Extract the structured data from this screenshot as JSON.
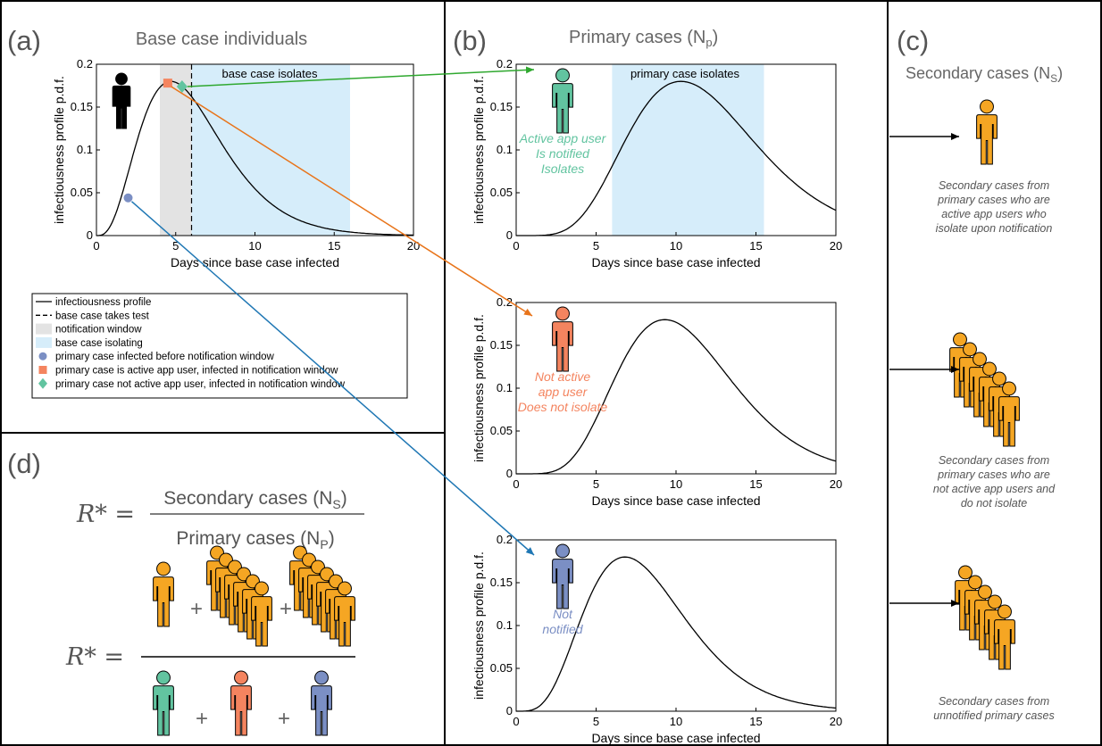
{
  "panels": {
    "a": {
      "label": "(a)",
      "title": "Base case individuals",
      "plot": {
        "ylabel": "infectiousness profile p.d.f.",
        "xlabel": "Days since base case infected",
        "xlim": [
          0,
          20
        ],
        "ylim": [
          0,
          0.2
        ],
        "xticks": [
          "0",
          "5",
          "10",
          "15",
          "20"
        ],
        "yticks": [
          "0",
          "0.05",
          "0.1",
          "0.15",
          "0.2"
        ],
        "notification_window": [
          4,
          6
        ],
        "test_day": 6,
        "isolation_window": [
          6,
          16
        ],
        "isolation_label": "base case isolates",
        "peak_day": 4.7,
        "markers": [
          {
            "kind": "circle",
            "day": 2,
            "value": 0.044,
            "color": "#7b8fc4"
          },
          {
            "kind": "square",
            "day": 4.5,
            "value": 0.178,
            "color": "#f4845f"
          },
          {
            "kind": "diamond",
            "day": 5.4,
            "value": 0.174,
            "color": "#62c4a0"
          }
        ]
      },
      "legend": [
        {
          "kind": "line",
          "label": "infectiousness profile"
        },
        {
          "kind": "dashed",
          "label": "base case takes test"
        },
        {
          "kind": "patch",
          "color": "#e3e3e3",
          "label": "notification window"
        },
        {
          "kind": "patch",
          "color": "#d6edfa",
          "label": "base case isolating"
        },
        {
          "kind": "circle",
          "color": "#7b8fc4",
          "label": "primary case infected before notification window"
        },
        {
          "kind": "square",
          "color": "#f4845f",
          "label": "primary case is active app user, infected in notification window"
        },
        {
          "kind": "diamond",
          "color": "#62c4a0",
          "label": "primary case not active app user, infected in notification window"
        }
      ]
    },
    "b": {
      "label": "(b)",
      "title": "Primary cases (N",
      "title_sub": "p",
      "title_end": ")",
      "plots": [
        {
          "ylabel": "infectiousness profile p.d.f.",
          "xlabel": "Days since base case infected",
          "xticks": [
            "0",
            "5",
            "10",
            "15",
            "20"
          ],
          "yticks": [
            "0",
            "0.05",
            "0.1",
            "0.15",
            "0.2"
          ],
          "xlim": [
            0,
            20
          ],
          "ylim": [
            0,
            0.2
          ],
          "peak_day": 10.3,
          "isolation_window": [
            6,
            15.5
          ],
          "isolation_label": "primary case isolates",
          "person_color": "#62c4a0",
          "caption": [
            "Active app user",
            "Is notified",
            "Isolates"
          ]
        },
        {
          "ylabel": "infectiousness profile p.d.f.",
          "xlabel": "Days since base case infected",
          "xticks": [
            "0",
            "5",
            "10",
            "15",
            "20"
          ],
          "yticks": [
            "0",
            "0.05",
            "0.1",
            "0.15",
            "0.2"
          ],
          "xlim": [
            0,
            20
          ],
          "ylim": [
            0,
            0.2
          ],
          "peak_day": 9.3,
          "person_color": "#f4845f",
          "caption": [
            "Not active",
            "app user",
            "Does not isolate"
          ]
        },
        {
          "ylabel": "infectiousness profile p.d.f.",
          "xlabel": "Days since base case infected",
          "xticks": [
            "0",
            "5",
            "10",
            "15",
            "20"
          ],
          "yticks": [
            "0",
            "0.05",
            "0.1",
            "0.15",
            "0.2"
          ],
          "xlim": [
            0,
            20
          ],
          "ylim": [
            0,
            0.2
          ],
          "peak_day": 6.8,
          "person_color": "#7b8fc4",
          "caption": [
            "Not",
            "notified"
          ]
        }
      ]
    },
    "c": {
      "label": "(c)",
      "title": "Secondary cases (N",
      "title_sub": "S",
      "title_end": ")",
      "person_color": "#f5a623",
      "groups": [
        {
          "count": 1,
          "caption": [
            "Secondary cases from",
            "primary cases who are",
            "active app users who",
            "isolate upon notification"
          ]
        },
        {
          "count": 6,
          "caption": [
            "Secondary cases from",
            "primary cases who are",
            "not active app users and",
            "do not isolate"
          ]
        },
        {
          "count": 5,
          "caption": [
            "Secondary cases from",
            "unnotified primary cases"
          ]
        }
      ]
    },
    "d": {
      "label": "(d)",
      "lhs": "R* =",
      "numerator": "Secondary cases (N",
      "numerator_sub": "S",
      "denominator": "Primary cases (N",
      "denominator_sub": "P",
      "close": ")",
      "plus": "+"
    }
  },
  "colors": {
    "green": "#62c4a0",
    "orange": "#f4845f",
    "blue": "#7b8fc4",
    "secondary": "#f5a623",
    "arrow_green": "#2fa82f",
    "arrow_orange": "#e8741a",
    "arrow_blue": "#1f77b4",
    "isolation": "#d6edfa",
    "notification": "#e3e3e3",
    "base_person": "#000000"
  }
}
